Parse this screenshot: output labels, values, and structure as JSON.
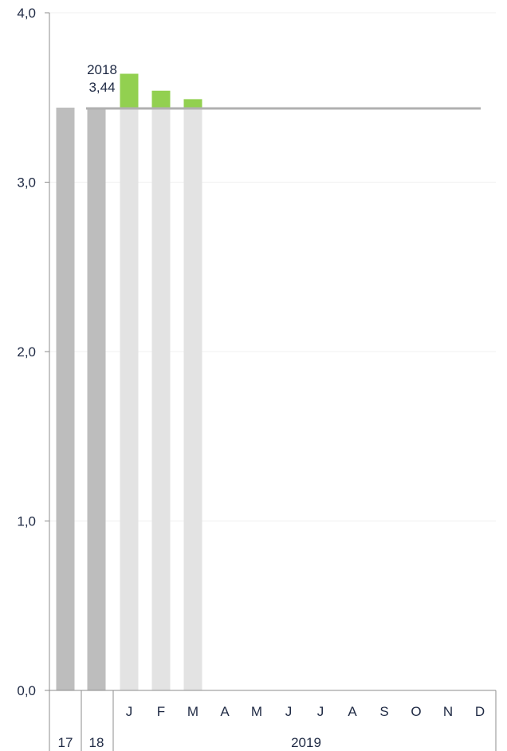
{
  "chart_data": {
    "type": "bar",
    "ylim": [
      0,
      4
    ],
    "y_ticks": [
      {
        "value": 0,
        "label": "0,0"
      },
      {
        "value": 1,
        "label": "1,0"
      },
      {
        "value": 2,
        "label": "2,0"
      },
      {
        "value": 3,
        "label": "3,0"
      },
      {
        "value": 4,
        "label": "4,0"
      }
    ],
    "annual_bars": [
      {
        "label": "17",
        "value": 3.44
      },
      {
        "label": "18",
        "value": 3.44
      }
    ],
    "months": [
      "J",
      "F",
      "M",
      "A",
      "M",
      "J",
      "J",
      "A",
      "S",
      "O",
      "N",
      "D"
    ],
    "monthly_values": [
      3.64,
      3.54,
      3.49,
      null,
      null,
      null,
      null,
      null,
      null,
      null,
      null,
      null
    ],
    "year_label": "2019",
    "reference_line": {
      "value": 3.44,
      "label_year": "2018",
      "label_value": "3,44"
    },
    "grid": true,
    "colors": {
      "annual_bar": "#bdbdbd",
      "month_bar_base": "#e3e3e3",
      "above_reference": "#92d050",
      "reference_line": "#b0b0b0",
      "axis": "#8c8c8c",
      "grid": "#f0f0f0",
      "text": "#1f2a44"
    }
  }
}
